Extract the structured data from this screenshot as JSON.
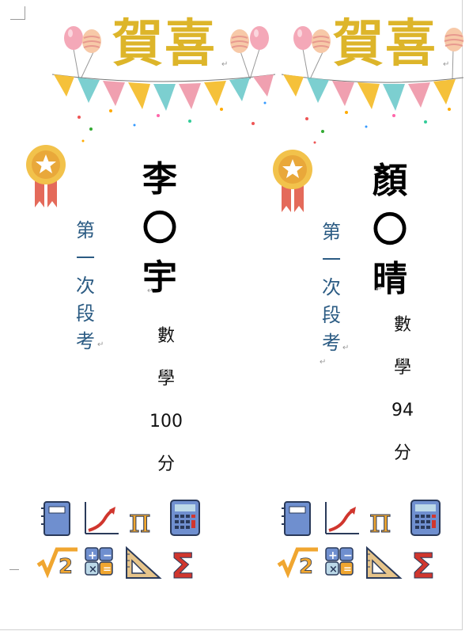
{
  "page": {
    "background": "#ffffff"
  },
  "cards": [
    {
      "title": "賀喜",
      "name_chars": [
        "李",
        "〇",
        "宇"
      ],
      "exam_chars": [
        "第",
        "一",
        "次",
        "段",
        "考"
      ],
      "score_lines": [
        "數",
        "學",
        "100",
        "分"
      ]
    },
    {
      "title": "賀喜",
      "name_chars": [
        "顏",
        "〇",
        "晴"
      ],
      "exam_chars": [
        "第",
        "一",
        "次",
        "段",
        "考"
      ],
      "score_lines": [
        "數",
        "學",
        "94",
        "分"
      ]
    }
  ],
  "colors": {
    "title": "#ddb52a",
    "exam_text": "#2b5b83",
    "name_text": "#000000"
  },
  "icon_names": [
    "notebook-icon",
    "graph-icon",
    "pi-icon",
    "calculator-icon",
    "sqrt-icon",
    "operations-icon",
    "set-square-icon",
    "sigma-icon"
  ],
  "paragraph_mark": "↵"
}
